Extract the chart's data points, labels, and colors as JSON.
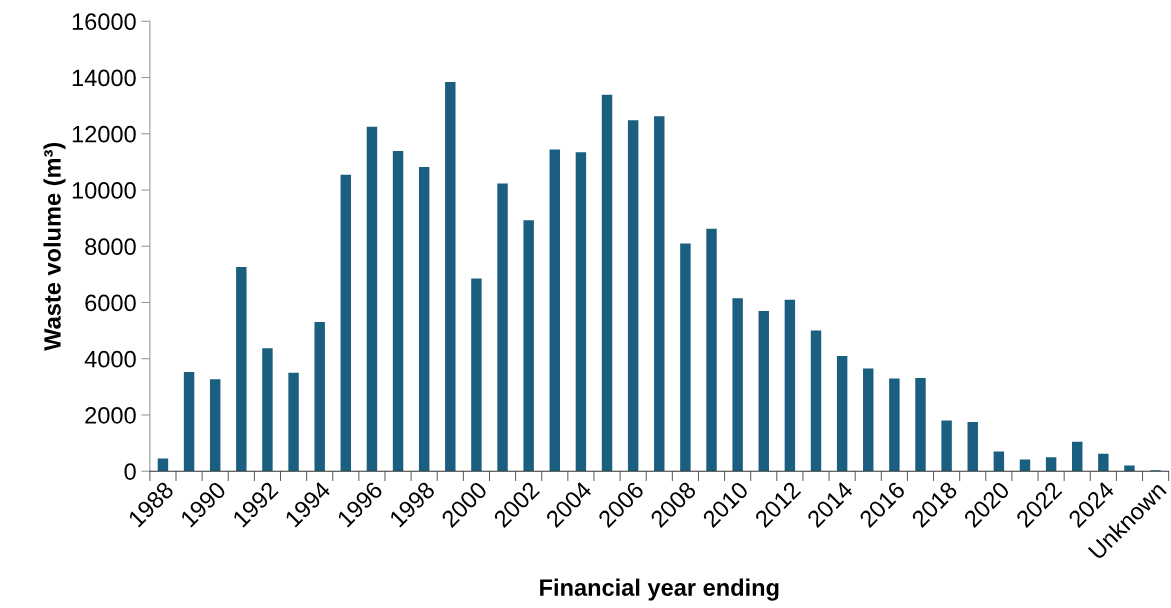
{
  "chart_data": {
    "type": "bar",
    "xlabel": "Financial year ending",
    "ylabel": "Waste volume (m³)",
    "categories": [
      "1988",
      null,
      "1990",
      null,
      "1992",
      null,
      "1994",
      null,
      "1996",
      null,
      "1998",
      null,
      "2000",
      null,
      "2002",
      null,
      "2004",
      null,
      "2006",
      null,
      "2008",
      null,
      "2010",
      null,
      "2012",
      null,
      "2014",
      null,
      "2016",
      null,
      "2018",
      null,
      "2020",
      null,
      "2022",
      null,
      "2024",
      null,
      "Unknown"
    ],
    "values": [
      450,
      3530,
      3270,
      7260,
      4370,
      3500,
      5310,
      10540,
      12250,
      11390,
      10820,
      13840,
      6850,
      10230,
      8920,
      11440,
      11340,
      13390,
      12480,
      12620,
      8100,
      8620,
      6150,
      5700,
      6100,
      5000,
      4100,
      3650,
      3300,
      3310,
      1800,
      1750,
      700,
      420,
      500,
      1050,
      620,
      200,
      30
    ],
    "color": "#1a5f80",
    "ylim": [
      0,
      16000
    ],
    "yticks": [
      0,
      2000,
      4000,
      6000,
      8000,
      10000,
      12000,
      14000,
      16000
    ],
    "grid": false
  }
}
